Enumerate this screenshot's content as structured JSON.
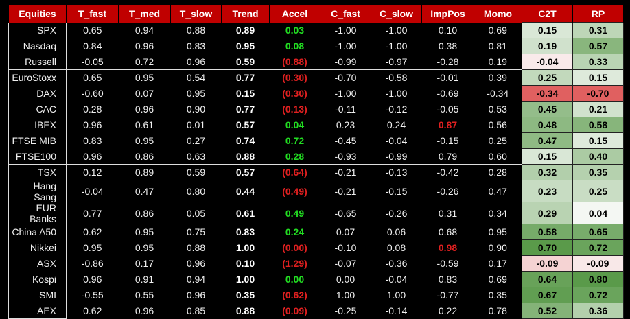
{
  "table": {
    "columns": [
      "Equities",
      "T_fast",
      "T_med",
      "T_slow",
      "Trend",
      "Accel",
      "C_fast",
      "C_slow",
      "ImpPos",
      "Momo",
      "C2T",
      "RP"
    ],
    "rows": [
      [
        "SPX",
        "0.65",
        "0.94",
        "0.88",
        "0.89",
        "0.03",
        "-1.00",
        "-1.00",
        "0.10",
        "0.69",
        "0.15",
        "0.31"
      ],
      [
        "Nasdaq",
        "0.84",
        "0.96",
        "0.83",
        "0.95",
        "0.08",
        "-1.00",
        "-1.00",
        "0.38",
        "0.81",
        "0.19",
        "0.57"
      ],
      [
        "Russell",
        "-0.05",
        "0.72",
        "0.96",
        "0.59",
        "(0.88)",
        "-0.99",
        "-0.97",
        "-0.28",
        "0.19",
        "-0.04",
        "0.33"
      ],
      [
        "EuroStoxx",
        "0.65",
        "0.95",
        "0.54",
        "0.77",
        "(0.30)",
        "-0.70",
        "-0.58",
        "-0.01",
        "0.39",
        "0.25",
        "0.15"
      ],
      [
        "DAX",
        "-0.60",
        "0.07",
        "0.95",
        "0.15",
        "(0.30)",
        "-1.00",
        "-1.00",
        "-0.69",
        "-0.34",
        "-0.34",
        "-0.70"
      ],
      [
        "CAC",
        "0.28",
        "0.96",
        "0.90",
        "0.77",
        "(0.13)",
        "-0.11",
        "-0.12",
        "-0.05",
        "0.53",
        "0.45",
        "0.21"
      ],
      [
        "IBEX",
        "0.96",
        "0.61",
        "0.01",
        "0.57",
        "0.04",
        "0.23",
        "0.24",
        "0.87",
        "0.56",
        "0.48",
        "0.58"
      ],
      [
        "FTSE MIB",
        "0.83",
        "0.95",
        "0.27",
        "0.74",
        "0.72",
        "-0.45",
        "-0.04",
        "-0.15",
        "0.25",
        "0.47",
        "0.15"
      ],
      [
        "FTSE100",
        "0.96",
        "0.86",
        "0.63",
        "0.88",
        "0.28",
        "-0.93",
        "-0.99",
        "0.79",
        "0.60",
        "0.15",
        "0.40"
      ],
      [
        "TSX",
        "0.12",
        "0.89",
        "0.59",
        "0.57",
        "(0.64)",
        "-0.21",
        "-0.13",
        "-0.42",
        "0.28",
        "0.32",
        "0.35"
      ],
      [
        "Hang Sang",
        "-0.04",
        "0.47",
        "0.80",
        "0.44",
        "(0.49)",
        "-0.21",
        "-0.15",
        "-0.26",
        "0.47",
        "0.23",
        "0.25"
      ],
      [
        "EUR Banks",
        "0.77",
        "0.86",
        "0.05",
        "0.61",
        "0.49",
        "-0.65",
        "-0.26",
        "0.31",
        "0.34",
        "0.29",
        "0.04"
      ],
      [
        "China A50",
        "0.62",
        "0.95",
        "0.75",
        "0.83",
        "0.24",
        "0.07",
        "0.06",
        "0.68",
        "0.95",
        "0.58",
        "0.65"
      ],
      [
        "Nikkei",
        "0.95",
        "0.95",
        "0.88",
        "1.00",
        "(0.00)",
        "-0.10",
        "0.08",
        "0.98",
        "0.90",
        "0.70",
        "0.72"
      ],
      [
        "ASX",
        "-0.86",
        "0.17",
        "0.96",
        "0.10",
        "(1.29)",
        "-0.07",
        "-0.36",
        "-0.59",
        "0.17",
        "-0.09",
        "-0.09"
      ],
      [
        "Kospi",
        "0.96",
        "0.91",
        "0.94",
        "1.00",
        "0.00",
        "0.00",
        "-0.04",
        "0.83",
        "0.69",
        "0.64",
        "0.80"
      ],
      [
        "SMI",
        "-0.55",
        "0.55",
        "0.96",
        "0.35",
        "(0.62)",
        "1.00",
        "1.00",
        "-0.77",
        "0.35",
        "0.67",
        "0.72"
      ],
      [
        "AEX",
        "0.62",
        "0.96",
        "0.85",
        "0.88",
        "(0.09)",
        "-0.25",
        "-0.14",
        "0.22",
        "0.78",
        "0.52",
        "0.36"
      ]
    ]
  }
}
